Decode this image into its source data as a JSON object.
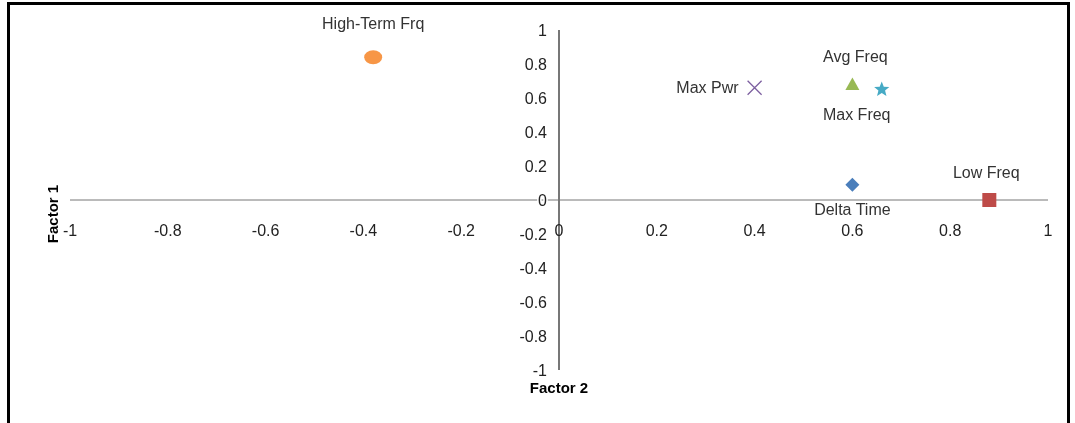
{
  "chart_data": {
    "type": "scatter",
    "xlabel": "Factor 2",
    "ylabel": "Factor 1",
    "xlim": [
      -1,
      1
    ],
    "ylim": [
      -1,
      1
    ],
    "xticks": [
      -1,
      -0.8,
      -0.6,
      -0.4,
      -0.2,
      0,
      0.2,
      0.4,
      0.6,
      0.8,
      1
    ],
    "yticks": [
      -1,
      -0.8,
      -0.6,
      -0.4,
      -0.2,
      0,
      0.2,
      0.4,
      0.6,
      0.8,
      1
    ],
    "series": [
      {
        "name": "Delta Time",
        "color": "#4a7ebb",
        "marker": "diamond",
        "x": [
          0.6
        ],
        "values": [
          0.09
        ]
      },
      {
        "name": "Low Freq",
        "color": "#be4b48",
        "marker": "square",
        "x": [
          0.88
        ],
        "values": [
          0
        ]
      },
      {
        "name": "Avg Freq",
        "color": "#98b954",
        "marker": "triangle",
        "x": [
          0.6
        ],
        "values": [
          0.68
        ]
      },
      {
        "name": "Max Pwr",
        "color": "#7d60a0",
        "marker": "cross",
        "x": [
          0.4
        ],
        "values": [
          0.66
        ]
      },
      {
        "name": "Max Freq",
        "color": "#46aac5",
        "marker": "star",
        "x": [
          0.66
        ],
        "values": [
          0.65
        ]
      },
      {
        "name": "High-Term Frq",
        "color": "#f79646",
        "marker": "circle",
        "x": [
          -0.38
        ],
        "values": [
          0.84
        ]
      }
    ]
  }
}
